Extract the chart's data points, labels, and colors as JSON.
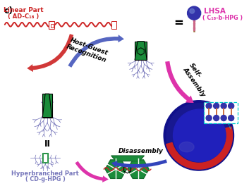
{
  "label_c": "c)",
  "label_linear": "Linear Part",
  "label_linear_sub": "( AD-C₁₈ )",
  "label_lhsa": "LHSA",
  "label_lhsa_sub": "( C₁₈-b-HPG )",
  "label_host_guest": "Host-Guest\nRecognition",
  "label_self_assembly": "Self-\nAssembly",
  "label_disassembly": "Disassembly",
  "label_hyperbranched": "Hyperbranched Part",
  "label_hyperbranched_sub": "( CD-g-HPG )",
  "label_equals": "=",
  "label_II": "II",
  "bg_color": "#ffffff",
  "linear_color": "#cc2222",
  "branch_color": "#7777bb",
  "green_color": "#1a8c3a",
  "green_dark": "#146b2d",
  "pink_color": "#dd33aa",
  "blue_color": "#2233aa",
  "vesicle_dark": "#10108a",
  "vesicle_mid": "#1a1aaa",
  "vesicle_red": "#cc2222",
  "vesicle_highlight": "#4444bb",
  "stick_color": "#996633",
  "sphere_color": "#3333aa",
  "cyan_color": "#00cccc"
}
